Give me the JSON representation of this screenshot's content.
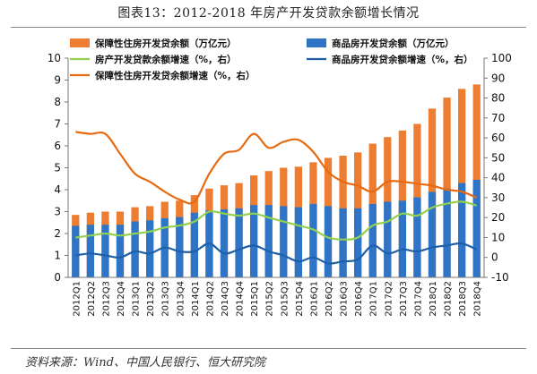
{
  "figure_title": "图表13：2012-2018 年房产开发贷款余额增长情况",
  "source_note": "资料来源：Wind、中国人民银行、恒大研究院",
  "colors": {
    "orange_bar": "#ED7D31",
    "blue_bar": "#2E75C8",
    "green_line": "#92D050",
    "orange_line": "#E86A10",
    "blue_line": "#1F5FA8"
  },
  "chart_data": {
    "type": "bar",
    "title": "图表13：2012-2018 年房产开发贷款余额增长情况",
    "categories": [
      "2012Q1",
      "2012Q2",
      "2012Q3",
      "2012Q4",
      "2013Q1",
      "2013Q2",
      "2013Q3",
      "2013Q4",
      "2014Q1",
      "2014Q2",
      "2014Q3",
      "2014Q4",
      "2015Q1",
      "2015Q2",
      "2015Q3",
      "2015Q4",
      "2016Q1",
      "2016Q2",
      "2016Q3",
      "2016Q4",
      "2017Q1",
      "2017Q2",
      "2017Q3",
      "2017Q4",
      "2018Q1",
      "2018Q2",
      "2018Q3",
      "2018Q4"
    ],
    "left_axis": {
      "ylim": [
        0,
        10
      ],
      "ticks": [
        "0",
        "1",
        "2",
        "3",
        "4",
        "5",
        "6",
        "7",
        "8",
        "9",
        "10"
      ]
    },
    "right_axis": {
      "ylim": [
        -10,
        100
      ],
      "ticks": [
        "-10",
        "0",
        "10",
        "20",
        "30",
        "40",
        "50",
        "60",
        "70",
        "80",
        "90",
        "100"
      ]
    },
    "grid": false,
    "legend_position": "top",
    "series": [
      {
        "name": "保障性住房开发贷余额（万亿元）",
        "type": "bar",
        "axis": "left",
        "stacked": true,
        "values": [
          2.85,
          2.95,
          3.0,
          3.0,
          3.2,
          3.25,
          3.45,
          3.5,
          3.75,
          4.05,
          4.2,
          4.3,
          4.65,
          4.85,
          5.0,
          5.05,
          5.25,
          5.45,
          5.55,
          5.7,
          6.1,
          6.4,
          6.7,
          7.0,
          7.7,
          8.2,
          8.6,
          8.8
        ]
      },
      {
        "name": "商品房开发贷余额（万亿元）",
        "type": "bar",
        "axis": "left",
        "values": [
          2.35,
          2.4,
          2.4,
          2.4,
          2.55,
          2.6,
          2.7,
          2.75,
          2.95,
          3.05,
          3.1,
          3.15,
          3.3,
          3.3,
          3.25,
          3.2,
          3.35,
          3.25,
          3.15,
          3.15,
          3.35,
          3.45,
          3.5,
          3.65,
          3.9,
          4.05,
          4.3,
          4.45
        ]
      },
      {
        "name": "房产开发贷款余额增速（%，右）",
        "type": "line",
        "axis": "right",
        "values": [
          10,
          11,
          12,
          11,
          12,
          13,
          15,
          16,
          18,
          23,
          22,
          21,
          22,
          20,
          18,
          16,
          14,
          10,
          9,
          10,
          16,
          18,
          22,
          21,
          25,
          27,
          28,
          26
        ]
      },
      {
        "name": "保障性住房开发贷余额增速（%，右）",
        "type": "line",
        "axis": "right",
        "values": [
          63,
          62,
          62,
          52,
          42,
          38,
          33,
          29,
          28,
          42,
          52,
          54,
          62,
          55,
          58,
          59,
          53,
          43,
          38,
          36,
          33,
          38,
          38,
          37,
          36,
          34,
          33,
          30
        ]
      },
      {
        "name": "商品房开发贷余额增速（%，右）",
        "type": "line",
        "axis": "right",
        "values": [
          1,
          2,
          1,
          0,
          3,
          2,
          5,
          3,
          3,
          7,
          2,
          4,
          6,
          3,
          1,
          -2,
          0,
          -3,
          -2,
          -1,
          6,
          2,
          4,
          3,
          5,
          6,
          7,
          4
        ]
      }
    ]
  }
}
